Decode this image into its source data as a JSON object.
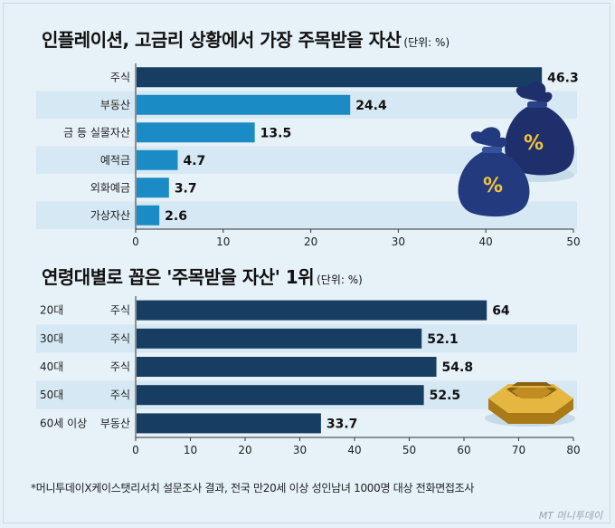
{
  "chart_data": [
    {
      "type": "bar",
      "orientation": "horizontal",
      "title": "인플레이션, 고금리 상황에서 가장 주목받을 자산",
      "unit": "(단위: %)",
      "categories": [
        "주식",
        "부동산",
        "금 등 실물자산",
        "예적금",
        "외화예금",
        "가상자산"
      ],
      "values": [
        46.3,
        24.4,
        13.5,
        4.7,
        3.7,
        2.6
      ],
      "value_labels": [
        "46.3",
        "24.4",
        "13.5",
        "4.7",
        "3.7",
        "2.6"
      ],
      "xlim": [
        0,
        50
      ],
      "xticks": [
        "0",
        "10",
        "20",
        "30",
        "40",
        "50"
      ],
      "colors": [
        "#173d63",
        "#1a8bc4",
        "#1a8bc4",
        "#1a8bc4",
        "#1a8bc4",
        "#1a8bc4"
      ]
    },
    {
      "type": "bar",
      "orientation": "horizontal",
      "title": "연령대별로 꼽은 '주목받을 자산' 1위",
      "unit": "(단위: %)",
      "categories": [
        "20대",
        "30대",
        "40대",
        "50대",
        "60세 이상"
      ],
      "asset_labels": [
        "주식",
        "주식",
        "주식",
        "주식",
        "부동산"
      ],
      "values": [
        64,
        52.1,
        54.8,
        52.5,
        33.7
      ],
      "value_labels": [
        "64",
        "52.1",
        "54.8",
        "52.5",
        "33.7"
      ],
      "xlim": [
        0,
        80
      ],
      "xticks": [
        "0",
        "10",
        "20",
        "30",
        "40",
        "50",
        "60",
        "70",
        "80"
      ],
      "colors": [
        "#173d63",
        "#173d63",
        "#173d63",
        "#173d63",
        "#173d63"
      ]
    }
  ],
  "footnote": "*머니투데이X케이스탯리서치 설문조사 결과, 전국 만20세 이상 성인남녀 1000명 대상 전화면접조사",
  "logo_text": "MT 머니투데이",
  "icons": [
    "money-bag-icon",
    "gold-nut-icon"
  ]
}
